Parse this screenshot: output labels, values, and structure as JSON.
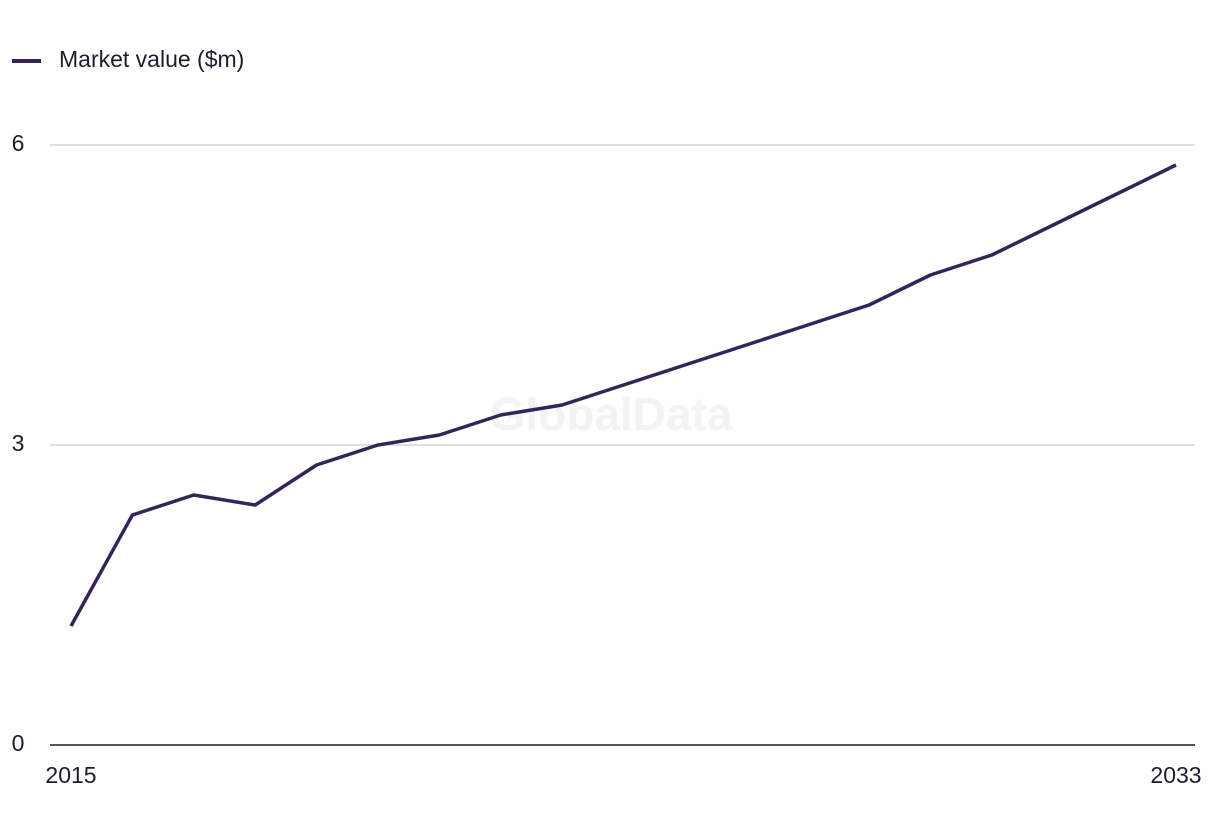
{
  "chart_data": {
    "type": "line",
    "watermark": "GlobalData",
    "x": [
      2015,
      2016,
      2017,
      2018,
      2019,
      2020,
      2021,
      2022,
      2023,
      2024,
      2025,
      2026,
      2027,
      2028,
      2029,
      2030,
      2031,
      2032,
      2033
    ],
    "series": [
      {
        "name": "Market value ($m)",
        "color": "#35235a",
        "values": [
          1.19,
          2.3,
          2.5,
          2.4,
          2.8,
          3.0,
          3.1,
          3.3,
          3.4,
          3.6,
          3.8,
          4.0,
          4.2,
          4.4,
          4.7,
          4.9,
          5.2,
          5.5,
          5.8
        ]
      }
    ],
    "xlim": [
      2015,
      2033
    ],
    "xticks": [
      2015,
      2033
    ],
    "ylim": [
      0,
      6
    ],
    "yticks": [
      0,
      3,
      6
    ],
    "grid": true,
    "legend": "top-left"
  }
}
